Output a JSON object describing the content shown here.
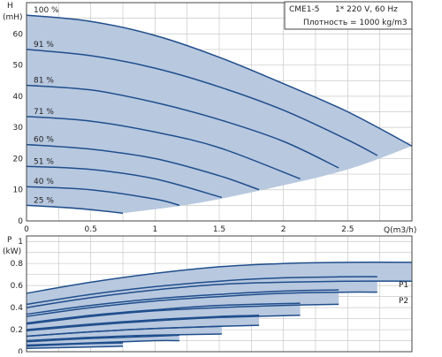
{
  "info_box": {
    "model": "CME1-5",
    "supply": "1* 220 V, 60 Hz",
    "density": "Плотность = 1000 kg/m3"
  },
  "colors": {
    "curve": "#1f4e8c",
    "fill": "#b8c8df",
    "grid": "#c8c8c8",
    "axis": "#444444"
  },
  "chart_data": [
    {
      "type": "line",
      "name_hint": "head-chart",
      "ylabel": "H",
      "ylabel_unit": "(mH)",
      "xlabel": "Q(m3/h)",
      "xlim": [
        0,
        3.0
      ],
      "ylim": [
        0,
        70
      ],
      "xticks": [
        0,
        0.5,
        1,
        1.5,
        2,
        2.5
      ],
      "xtick_labels": [
        "0",
        "0.5",
        "1",
        "1.5",
        "2",
        "2.5"
      ],
      "yticks": [
        0,
        10,
        20,
        30,
        40,
        50,
        60
      ],
      "ytick_labels": [
        "0",
        "10",
        "20",
        "30",
        "40",
        "50",
        "60"
      ],
      "grid": true,
      "min_curve": [
        [
          0.75,
          2.5
        ],
        [
          1.3,
          5.5
        ],
        [
          1.9,
          10.5
        ],
        [
          2.5,
          16.5
        ],
        [
          3.0,
          24
        ]
      ],
      "series": [
        {
          "name": "100 %",
          "label": "100 %",
          "x": [
            0,
            0.5,
            1.0,
            1.5,
            2.0,
            2.5,
            3.0
          ],
          "y": [
            66,
            64,
            59.5,
            52.5,
            44,
            35,
            24
          ]
        },
        {
          "name": "91 %",
          "label": "91 %",
          "x": [
            0,
            0.5,
            1.0,
            1.5,
            2.0,
            2.5,
            2.73
          ],
          "y": [
            55,
            53,
            49,
            43,
            35.5,
            26,
            21
          ]
        },
        {
          "name": "81 %",
          "label": "81 %",
          "x": [
            0,
            0.5,
            1.0,
            1.5,
            2.0,
            2.43
          ],
          "y": [
            43.5,
            42,
            38,
            32.5,
            25.5,
            17
          ]
        },
        {
          "name": "71 %",
          "label": "71 %",
          "x": [
            0,
            0.5,
            1.0,
            1.5,
            2.13
          ],
          "y": [
            33.5,
            32,
            28.5,
            23.5,
            13.5
          ]
        },
        {
          "name": "60 %",
          "label": "60 %",
          "x": [
            0,
            0.5,
            1.0,
            1.5,
            1.81
          ],
          "y": [
            24.5,
            23,
            20,
            14.5,
            10
          ]
        },
        {
          "name": "51 %",
          "label": "51 %",
          "x": [
            0,
            0.5,
            1.0,
            1.52
          ],
          "y": [
            17.5,
            16.5,
            13.5,
            7.5
          ]
        },
        {
          "name": "40 %",
          "label": "40 %",
          "x": [
            0,
            0.5,
            1.0,
            1.19
          ],
          "y": [
            11,
            10,
            7,
            5
          ]
        },
        {
          "name": "25 %",
          "label": "25 %",
          "x": [
            0,
            0.4,
            0.75
          ],
          "y": [
            5,
            4,
            2.5
          ]
        }
      ]
    },
    {
      "type": "line",
      "name_hint": "power-chart",
      "ylabel": "P",
      "ylabel_unit": "(kW)",
      "xlim": [
        0,
        3.0
      ],
      "ylim": [
        0,
        1.05
      ],
      "yticks": [
        0,
        0.2,
        0.4,
        0.6,
        0.8,
        1
      ],
      "ytick_labels": [
        "0",
        "0.2",
        "0.4",
        "0.6",
        "0.8",
        "1"
      ],
      "grid": true,
      "series_labels": [
        "P1",
        "P2"
      ],
      "p1_curves": [
        {
          "x": [
            0,
            0.5,
            1.0,
            1.5,
            2.0,
            2.5,
            3.0
          ],
          "y": [
            0.53,
            0.63,
            0.71,
            0.77,
            0.8,
            0.81,
            0.81
          ]
        },
        {
          "x": [
            0,
            0.5,
            1.0,
            1.5,
            2.0,
            2.5,
            2.73
          ],
          "y": [
            0.43,
            0.52,
            0.59,
            0.64,
            0.67,
            0.68,
            0.68
          ]
        },
        {
          "x": [
            0,
            0.5,
            1.0,
            1.5,
            2.0,
            2.43
          ],
          "y": [
            0.34,
            0.42,
            0.48,
            0.52,
            0.55,
            0.56
          ]
        },
        {
          "x": [
            0,
            0.5,
            1.0,
            1.5,
            2.13
          ],
          "y": [
            0.26,
            0.33,
            0.38,
            0.42,
            0.44
          ]
        },
        {
          "x": [
            0,
            0.5,
            1.0,
            1.5,
            1.81
          ],
          "y": [
            0.2,
            0.25,
            0.29,
            0.32,
            0.33
          ]
        },
        {
          "x": [
            0,
            0.5,
            1.0,
            1.52
          ],
          "y": [
            0.14,
            0.18,
            0.21,
            0.23
          ]
        },
        {
          "x": [
            0,
            0.5,
            1.0,
            1.19
          ],
          "y": [
            0.09,
            0.12,
            0.14,
            0.15
          ]
        },
        {
          "x": [
            0,
            0.4,
            0.75
          ],
          "y": [
            0.05,
            0.07,
            0.08
          ]
        }
      ],
      "p2_curves": [
        {
          "x": [
            0,
            0.5,
            1.0,
            1.5,
            2.0,
            2.5,
            3.0
          ],
          "y": [
            0.4,
            0.49,
            0.56,
            0.61,
            0.63,
            0.64,
            0.64
          ]
        },
        {
          "x": [
            0,
            0.5,
            1.0,
            1.5,
            2.0,
            2.5,
            2.73
          ],
          "y": [
            0.32,
            0.4,
            0.46,
            0.5,
            0.53,
            0.54,
            0.54
          ]
        },
        {
          "x": [
            0,
            0.5,
            1.0,
            1.5,
            2.0,
            2.43
          ],
          "y": [
            0.25,
            0.32,
            0.37,
            0.4,
            0.42,
            0.43
          ]
        },
        {
          "x": [
            0,
            0.5,
            1.0,
            1.5,
            2.13
          ],
          "y": [
            0.19,
            0.24,
            0.28,
            0.31,
            0.33
          ]
        },
        {
          "x": [
            0,
            0.5,
            1.0,
            1.5,
            1.81
          ],
          "y": [
            0.14,
            0.18,
            0.21,
            0.23,
            0.24
          ]
        },
        {
          "x": [
            0,
            0.5,
            1.0,
            1.52
          ],
          "y": [
            0.1,
            0.13,
            0.15,
            0.16
          ]
        },
        {
          "x": [
            0,
            0.5,
            1.0,
            1.19
          ],
          "y": [
            0.06,
            0.08,
            0.1,
            0.1
          ]
        },
        {
          "x": [
            0,
            0.4,
            0.75
          ],
          "y": [
            0.03,
            0.04,
            0.05
          ]
        }
      ]
    }
  ]
}
